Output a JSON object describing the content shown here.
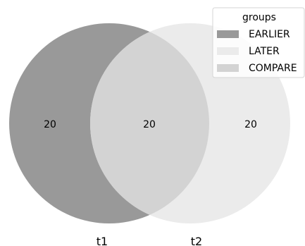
{
  "chart_data": {
    "type": "venn",
    "sets": [
      {
        "name": "t1",
        "color": "#999999"
      },
      {
        "name": "t2",
        "color": "#ebebeb"
      }
    ],
    "regions": [
      {
        "id": "t1_only",
        "value": "20"
      },
      {
        "id": "t1_and_t2",
        "value": "20"
      },
      {
        "id": "t2_only",
        "value": "20"
      }
    ],
    "overlap_color": "#d3d3d3",
    "legend": {
      "title": "groups",
      "placement": "top-right",
      "entries": [
        {
          "label": "EARLIER",
          "color": "#999999"
        },
        {
          "label": "LATER",
          "color": "#ebebeb"
        },
        {
          "label": "COMPARE",
          "color": "#d3d3d3"
        }
      ]
    }
  }
}
